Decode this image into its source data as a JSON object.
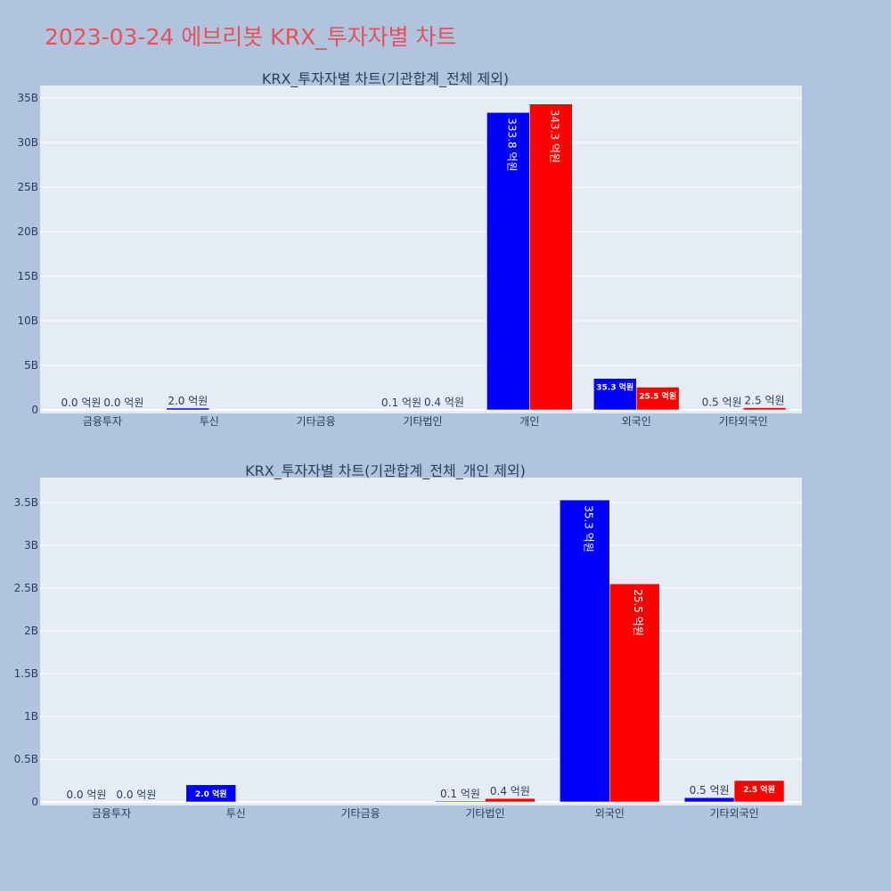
{
  "page": {
    "title": "2023-03-24 에브리봇 KRX_투자자별 차트"
  },
  "colors": {
    "series_a": "#0000ff",
    "series_b": "#ff0000",
    "plot_bg": "#e5ecf6",
    "paper_bg": "#b0c4de",
    "title": "#e8505b"
  },
  "chart_data": [
    {
      "type": "bar",
      "title": "KRX_투자자별 차트(기관합계_전체 제외)",
      "categories": [
        "금융투자",
        "투신",
        "기타금융",
        "기타법인",
        "개인",
        "외국인",
        "기타외국인"
      ],
      "series": [
        {
          "color": "#0000ff",
          "values": [
            0.0,
            0.2,
            null,
            0.01,
            33.38,
            3.53,
            0.05
          ],
          "labels": [
            "0.0 억원",
            "2.0 억원",
            "",
            "0.1 억원",
            "333.8 억원",
            "35.3 억원",
            "0.5 억원"
          ]
        },
        {
          "color": "#ff0000",
          "values": [
            0.0,
            null,
            null,
            0.04,
            34.33,
            2.55,
            0.25
          ],
          "labels": [
            "0.0 억원",
            "",
            "",
            "0.4 억원",
            "343.3 억원",
            "25.5 억원",
            "2.5 억원"
          ]
        }
      ],
      "ylim": [
        0,
        36
      ],
      "yticks": [
        0,
        5,
        10,
        15,
        20,
        25,
        30,
        35
      ],
      "ytick_labels": [
        "0",
        "5B",
        "10B",
        "15B",
        "20B",
        "25B",
        "30B",
        "35B"
      ],
      "grid": true
    },
    {
      "type": "bar",
      "title": "KRX_투자자별 차트(기관합계_전체_개인 제외)",
      "categories": [
        "금융투자",
        "투신",
        "기타금융",
        "기타법인",
        "외국인",
        "기타외국인"
      ],
      "series": [
        {
          "color": "#0000ff",
          "values": [
            0.0,
            0.2,
            null,
            0.01,
            3.53,
            0.05
          ],
          "labels": [
            "0.0 억원",
            "2.0 억원",
            "",
            "0.1 억원",
            "35.3 억원",
            "0.5 억원"
          ]
        },
        {
          "color": "#ff0000",
          "values": [
            0.0,
            null,
            null,
            0.04,
            2.55,
            0.25
          ],
          "labels": [
            "0.0 억원",
            "",
            "",
            "0.4 억원",
            "25.5 억원",
            "2.5 억원"
          ]
        }
      ],
      "ylim": [
        0,
        3.75
      ],
      "yticks": [
        0,
        0.5,
        1,
        1.5,
        2,
        2.5,
        3,
        3.5
      ],
      "ytick_labels": [
        "0",
        "0.5B",
        "1B",
        "1.5B",
        "2B",
        "2.5B",
        "3B",
        "3.5B"
      ],
      "grid": true
    }
  ]
}
